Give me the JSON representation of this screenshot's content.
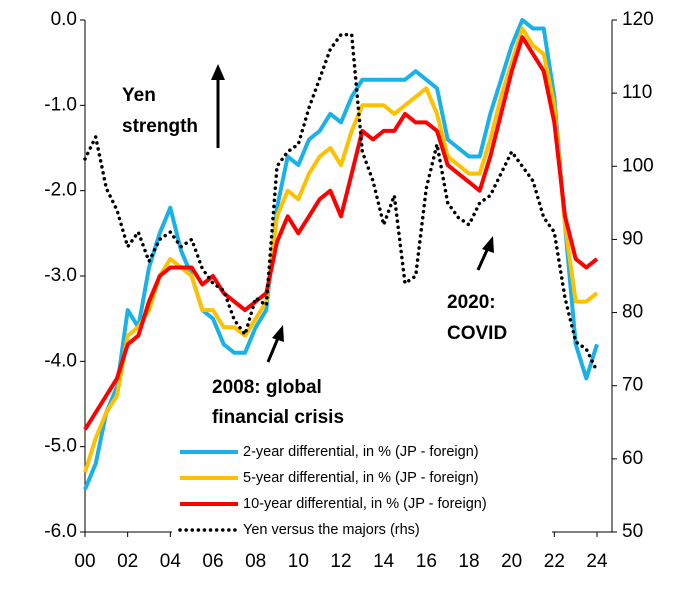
{
  "chart_data": {
    "type": "line",
    "x": [
      2000,
      2000.5,
      2001,
      2001.5,
      2002,
      2002.5,
      2003,
      2003.5,
      2004,
      2004.5,
      2005,
      2005.5,
      2006,
      2006.5,
      2007,
      2007.5,
      2008,
      2008.5,
      2009,
      2009.5,
      2010,
      2010.5,
      2011,
      2011.5,
      2012,
      2012.5,
      2013,
      2013.5,
      2014,
      2014.5,
      2015,
      2015.5,
      2016,
      2016.5,
      2017,
      2017.5,
      2018,
      2018.5,
      2019,
      2019.5,
      2020,
      2020.5,
      2021,
      2021.5,
      2022,
      2022.5,
      2023,
      2023.5,
      2024
    ],
    "series": [
      {
        "name": "2-year differential, in % (JP - foreign)",
        "color": "#1ab0e8",
        "axis": "y",
        "values": [
          -5.5,
          -5.2,
          -4.6,
          -4.3,
          -3.4,
          -3.6,
          -2.9,
          -2.5,
          -2.2,
          -2.7,
          -3.0,
          -3.4,
          -3.5,
          -3.8,
          -3.9,
          -3.9,
          -3.6,
          -3.4,
          -2.2,
          -1.6,
          -1.7,
          -1.4,
          -1.3,
          -1.1,
          -1.2,
          -0.9,
          -0.7,
          -0.7,
          -0.7,
          -0.7,
          -0.7,
          -0.6,
          -0.7,
          -0.8,
          -1.4,
          -1.5,
          -1.6,
          -1.6,
          -1.1,
          -0.7,
          -0.3,
          0.0,
          -0.1,
          -0.1,
          -0.9,
          -2.4,
          -3.8,
          -4.2,
          -3.8
        ]
      },
      {
        "name": "5-year differential, in % (JP - foreign)",
        "color": "#ffc000",
        "axis": "y",
        "values": [
          -5.3,
          -4.9,
          -4.6,
          -4.4,
          -3.7,
          -3.6,
          -3.4,
          -3.0,
          -2.8,
          -2.9,
          -3.0,
          -3.4,
          -3.4,
          -3.6,
          -3.6,
          -3.7,
          -3.5,
          -3.3,
          -2.3,
          -2.0,
          -2.1,
          -1.8,
          -1.6,
          -1.5,
          -1.7,
          -1.3,
          -1.0,
          -1.0,
          -1.0,
          -1.1,
          -1.0,
          -0.9,
          -0.8,
          -1.1,
          -1.6,
          -1.7,
          -1.8,
          -1.8,
          -1.4,
          -0.9,
          -0.5,
          -0.1,
          -0.3,
          -0.4,
          -1.0,
          -2.4,
          -3.3,
          -3.3,
          -3.2
        ]
      },
      {
        "name": "10-year differential, in % (JP - foreign)",
        "color": "#ff0000",
        "axis": "y",
        "values": [
          -4.8,
          -4.6,
          -4.4,
          -4.2,
          -3.8,
          -3.7,
          -3.3,
          -3.0,
          -2.9,
          -2.9,
          -2.9,
          -3.1,
          -3.0,
          -3.2,
          -3.3,
          -3.4,
          -3.3,
          -3.2,
          -2.6,
          -2.3,
          -2.5,
          -2.3,
          -2.1,
          -2.0,
          -2.3,
          -1.8,
          -1.3,
          -1.4,
          -1.3,
          -1.3,
          -1.1,
          -1.2,
          -1.2,
          -1.3,
          -1.7,
          -1.8,
          -1.9,
          -2.0,
          -1.6,
          -1.1,
          -0.6,
          -0.2,
          -0.4,
          -0.6,
          -1.2,
          -2.3,
          -2.8,
          -2.9,
          -2.8
        ]
      },
      {
        "name": "Yen versus the majors (rhs)",
        "color": "#000000",
        "axis": "y2",
        "dotted": true,
        "values": [
          101,
          104,
          97,
          94,
          89,
          91,
          87,
          90,
          91,
          89,
          90,
          86,
          84,
          83,
          79,
          77,
          82,
          81,
          100,
          102,
          103,
          108,
          112,
          116,
          118,
          118,
          102,
          98,
          92,
          96,
          84,
          85,
          97,
          103,
          95,
          93,
          92,
          95,
          96,
          99,
          102,
          100,
          98,
          93,
          91,
          82,
          76,
          75,
          72
        ]
      }
    ],
    "xlim": [
      2000,
      2024
    ],
    "xticks": [
      {
        "value": 2000,
        "label": "00"
      },
      {
        "value": 2002,
        "label": "02"
      },
      {
        "value": 2004,
        "label": "04"
      },
      {
        "value": 2006,
        "label": "06"
      },
      {
        "value": 2008,
        "label": "08"
      },
      {
        "value": 2010,
        "label": "10"
      },
      {
        "value": 2012,
        "label": "12"
      },
      {
        "value": 2014,
        "label": "14"
      },
      {
        "value": 2016,
        "label": "16"
      },
      {
        "value": 2018,
        "label": "18"
      },
      {
        "value": 2020,
        "label": "20"
      },
      {
        "value": 2022,
        "label": "22"
      },
      {
        "value": 2024,
        "label": "24"
      }
    ],
    "ylim": [
      -6,
      0
    ],
    "yticks": [
      {
        "value": -6,
        "label": "-6.0"
      },
      {
        "value": -5,
        "label": "-5.0"
      },
      {
        "value": -4,
        "label": "-4.0"
      },
      {
        "value": -3,
        "label": "-3.0"
      },
      {
        "value": -2,
        "label": "-2.0"
      },
      {
        "value": -1,
        "label": "-1.0"
      },
      {
        "value": 0,
        "label": "0.0"
      }
    ],
    "y2lim": [
      50,
      120
    ],
    "y2ticks": [
      50,
      60,
      70,
      80,
      90,
      100,
      110,
      120
    ],
    "annotations": [
      "Yen",
      "strength",
      "2008: global",
      "financial crisis",
      "2020:",
      "COVID"
    ]
  }
}
